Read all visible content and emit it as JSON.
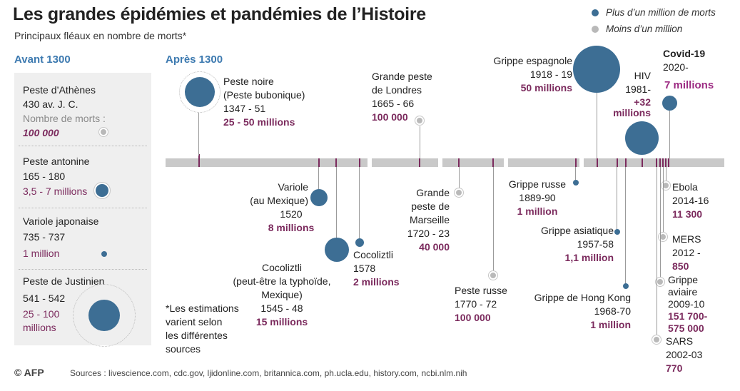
{
  "header": {
    "title": "Les grandes épidémies et pandémies de l’Histoire",
    "subtitle": "Principaux fléaux en nombre de morts*"
  },
  "legend": {
    "big": "Plus d’un million de morts",
    "small": "Moins d’un million"
  },
  "sections": {
    "before": "Avant 1300",
    "after": "Après 1300"
  },
  "before_1300": [
    {
      "name": "Peste d’Athènes",
      "dates": "430 av. J. C.",
      "deaths_label": "Nombre de morts :",
      "deaths": "100 000"
    },
    {
      "name": "Peste antonine",
      "dates": "165 - 180",
      "deaths": "3,5 - 7 millions"
    },
    {
      "name": "Variole japonaise",
      "dates": "735 - 737",
      "deaths": "1 million"
    },
    {
      "name": "Peste de Justinien",
      "dates": "541 - 542",
      "deaths_l1": "25 - 100",
      "deaths_l2": "millions"
    }
  ],
  "events": {
    "peste_noire": {
      "l1": "Peste noire",
      "l2": "(Peste bubonique)",
      "dates": "1347 - 51",
      "deaths": "25 - 50 millions"
    },
    "grande_peste_londres": {
      "l1": "Grande peste",
      "l2": "de Londres",
      "dates": "1665 - 66",
      "deaths": "100 000"
    },
    "grippe_espagnole": {
      "name": "Grippe espagnole",
      "dates": "1918 - 19",
      "deaths": "50 millions"
    },
    "hiv": {
      "name": "HIV",
      "dates": "1981-",
      "deaths_l1": "+32",
      "deaths_l2": "millions"
    },
    "covid": {
      "name": "Covid-19",
      "dates": "2020-",
      "deaths": "7 millions"
    },
    "variole_mexique": {
      "l1": "Variole",
      "l2": "(au Mexique)",
      "dates": "1520",
      "deaths": "8 millions"
    },
    "cocoliztli_1545": {
      "l1": "Cocoliztli",
      "l2": "(peut-être la typhoïde,",
      "l3": "Mexique)",
      "dates": "1545 - 48",
      "deaths": "15 millions"
    },
    "cocoliztli_1578": {
      "name": "Cocoliztli",
      "dates": "1578",
      "deaths": "2 millions"
    },
    "peste_marseille": {
      "l1": "Grande",
      "l2": "peste de",
      "l3": "Marseille",
      "dates": "1720 - 23",
      "deaths": "40 000"
    },
    "peste_russe": {
      "name": "Peste russe",
      "dates": "1770 - 72",
      "deaths": "100 000"
    },
    "grippe_russe": {
      "name": "Grippe russe",
      "dates": "1889-90",
      "deaths": "1 million"
    },
    "grippe_asiatique": {
      "name": "Grippe asiatique",
      "dates": "1957-58",
      "deaths": "1,1 million"
    },
    "grippe_hong_kong": {
      "name": "Grippe de Hong Kong",
      "dates": "1968-70",
      "deaths": "1 million"
    },
    "ebola": {
      "name": "Ebola",
      "dates": "2014-16",
      "deaths": "11 300"
    },
    "mers": {
      "name": "MERS",
      "dates": "2012 -",
      "deaths": "850"
    },
    "grippe_aviaire": {
      "l1": "Grippe",
      "l2": "aviaire",
      "dates": "2009-10",
      "deaths_l1": "151 700-",
      "deaths_l2": "575 000"
    },
    "sars": {
      "name": "SARS",
      "dates": "2002-03",
      "deaths": "770"
    }
  },
  "footnote": [
    "*Les estimations",
    "varient selon",
    "les différentes",
    "sources"
  ],
  "footer": {
    "logo": "© AFP",
    "sources": "Sources : livescience.com, cdc.gov, ljidonline.com, britannica.com, ph.ucla.edu, history.com, ncbi.nlm.nih"
  },
  "colors": {
    "bubble": "#3d6e94",
    "accent": "#7b2a5d",
    "timeline": "#c9c9c9",
    "section_heading": "#3d7ab0",
    "panel": "#efefef"
  }
}
